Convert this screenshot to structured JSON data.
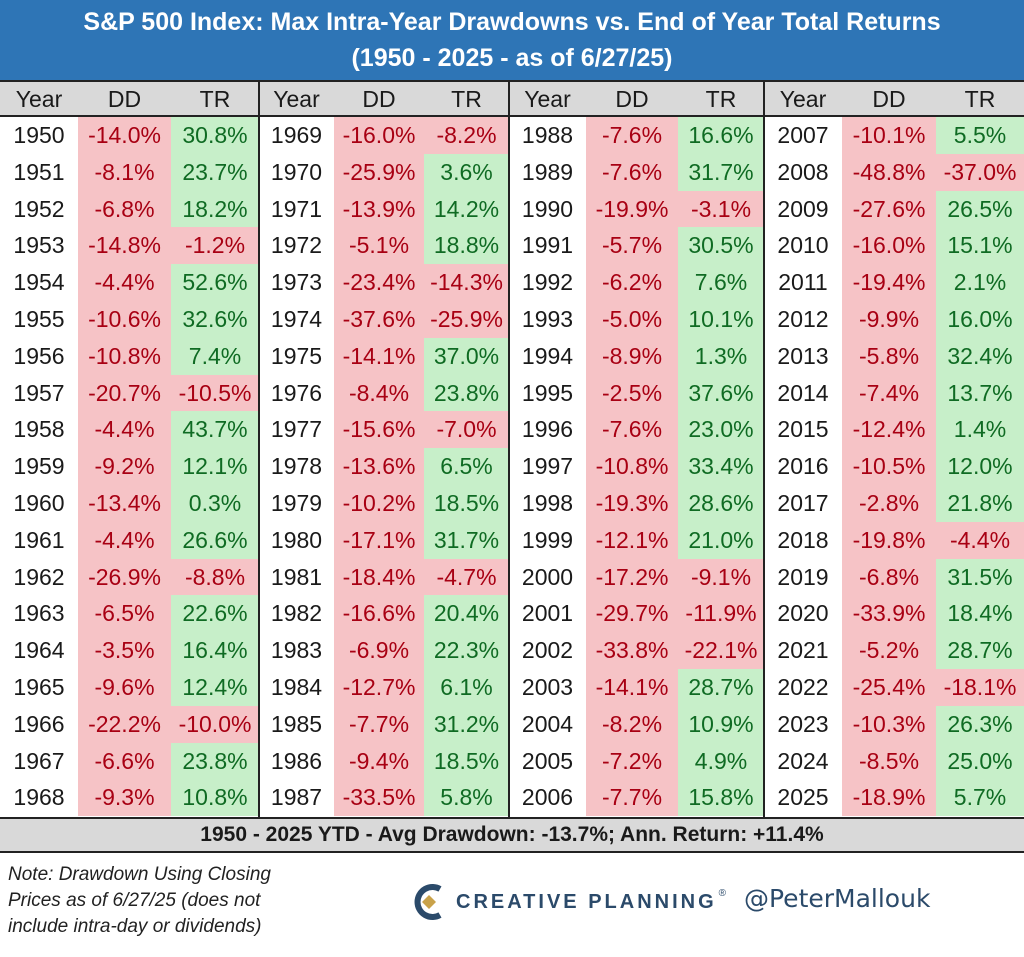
{
  "title": {
    "line1": "S&P 500 Index: Max Intra-Year Drawdowns vs. End of Year Total Returns",
    "line2": "(1950 - 2025 - as of 6/27/25)"
  },
  "headers": {
    "year": "Year",
    "dd": "DD",
    "tr": "TR"
  },
  "chart_data": {
    "type": "table",
    "columns": [
      "Year",
      "DD",
      "TR"
    ],
    "rows": [
      [
        "1950",
        "-14.0%",
        "30.8%"
      ],
      [
        "1951",
        "-8.1%",
        "23.7%"
      ],
      [
        "1952",
        "-6.8%",
        "18.2%"
      ],
      [
        "1953",
        "-14.8%",
        "-1.2%"
      ],
      [
        "1954",
        "-4.4%",
        "52.6%"
      ],
      [
        "1955",
        "-10.6%",
        "32.6%"
      ],
      [
        "1956",
        "-10.8%",
        "7.4%"
      ],
      [
        "1957",
        "-20.7%",
        "-10.5%"
      ],
      [
        "1958",
        "-4.4%",
        "43.7%"
      ],
      [
        "1959",
        "-9.2%",
        "12.1%"
      ],
      [
        "1960",
        "-13.4%",
        "0.3%"
      ],
      [
        "1961",
        "-4.4%",
        "26.6%"
      ],
      [
        "1962",
        "-26.9%",
        "-8.8%"
      ],
      [
        "1963",
        "-6.5%",
        "22.6%"
      ],
      [
        "1964",
        "-3.5%",
        "16.4%"
      ],
      [
        "1965",
        "-9.6%",
        "12.4%"
      ],
      [
        "1966",
        "-22.2%",
        "-10.0%"
      ],
      [
        "1967",
        "-6.6%",
        "23.8%"
      ],
      [
        "1968",
        "-9.3%",
        "10.8%"
      ],
      [
        "1969",
        "-16.0%",
        "-8.2%"
      ],
      [
        "1970",
        "-25.9%",
        "3.6%"
      ],
      [
        "1971",
        "-13.9%",
        "14.2%"
      ],
      [
        "1972",
        "-5.1%",
        "18.8%"
      ],
      [
        "1973",
        "-23.4%",
        "-14.3%"
      ],
      [
        "1974",
        "-37.6%",
        "-25.9%"
      ],
      [
        "1975",
        "-14.1%",
        "37.0%"
      ],
      [
        "1976",
        "-8.4%",
        "23.8%"
      ],
      [
        "1977",
        "-15.6%",
        "-7.0%"
      ],
      [
        "1978",
        "-13.6%",
        "6.5%"
      ],
      [
        "1979",
        "-10.2%",
        "18.5%"
      ],
      [
        "1980",
        "-17.1%",
        "31.7%"
      ],
      [
        "1981",
        "-18.4%",
        "-4.7%"
      ],
      [
        "1982",
        "-16.6%",
        "20.4%"
      ],
      [
        "1983",
        "-6.9%",
        "22.3%"
      ],
      [
        "1984",
        "-12.7%",
        "6.1%"
      ],
      [
        "1985",
        "-7.7%",
        "31.2%"
      ],
      [
        "1986",
        "-9.4%",
        "18.5%"
      ],
      [
        "1987",
        "-33.5%",
        "5.8%"
      ],
      [
        "1988",
        "-7.6%",
        "16.6%"
      ],
      [
        "1989",
        "-7.6%",
        "31.7%"
      ],
      [
        "1990",
        "-19.9%",
        "-3.1%"
      ],
      [
        "1991",
        "-5.7%",
        "30.5%"
      ],
      [
        "1992",
        "-6.2%",
        "7.6%"
      ],
      [
        "1993",
        "-5.0%",
        "10.1%"
      ],
      [
        "1994",
        "-8.9%",
        "1.3%"
      ],
      [
        "1995",
        "-2.5%",
        "37.6%"
      ],
      [
        "1996",
        "-7.6%",
        "23.0%"
      ],
      [
        "1997",
        "-10.8%",
        "33.4%"
      ],
      [
        "1998",
        "-19.3%",
        "28.6%"
      ],
      [
        "1999",
        "-12.1%",
        "21.0%"
      ],
      [
        "2000",
        "-17.2%",
        "-9.1%"
      ],
      [
        "2001",
        "-29.7%",
        "-11.9%"
      ],
      [
        "2002",
        "-33.8%",
        "-22.1%"
      ],
      [
        "2003",
        "-14.1%",
        "28.7%"
      ],
      [
        "2004",
        "-8.2%",
        "10.9%"
      ],
      [
        "2005",
        "-7.2%",
        "4.9%"
      ],
      [
        "2006",
        "-7.7%",
        "15.8%"
      ],
      [
        "2007",
        "-10.1%",
        "5.5%"
      ],
      [
        "2008",
        "-48.8%",
        "-37.0%"
      ],
      [
        "2009",
        "-27.6%",
        "26.5%"
      ],
      [
        "2010",
        "-16.0%",
        "15.1%"
      ],
      [
        "2011",
        "-19.4%",
        "2.1%"
      ],
      [
        "2012",
        "-9.9%",
        "16.0%"
      ],
      [
        "2013",
        "-5.8%",
        "32.4%"
      ],
      [
        "2014",
        "-7.4%",
        "13.7%"
      ],
      [
        "2015",
        "-12.4%",
        "1.4%"
      ],
      [
        "2016",
        "-10.5%",
        "12.0%"
      ],
      [
        "2017",
        "-2.8%",
        "21.8%"
      ],
      [
        "2018",
        "-19.8%",
        "-4.4%"
      ],
      [
        "2019",
        "-6.8%",
        "31.5%"
      ],
      [
        "2020",
        "-33.9%",
        "18.4%"
      ],
      [
        "2021",
        "-5.2%",
        "28.7%"
      ],
      [
        "2022",
        "-25.4%",
        "-18.1%"
      ],
      [
        "2023",
        "-10.3%",
        "26.3%"
      ],
      [
        "2024",
        "-8.5%",
        "25.0%"
      ],
      [
        "2025",
        "-18.9%",
        "5.7%"
      ]
    ]
  },
  "colors": {
    "title_bg": "#2e75b6",
    "negative_bg": "#f6c3c6",
    "negative_text": "#a80013",
    "positive_bg": "#c7efc9",
    "positive_text": "#0f6b23",
    "band_bg": "#d9d9d9"
  },
  "summary": "1950 - 2025 YTD - Avg Drawdown: -13.7%; Ann. Return: +11.4%",
  "note": {
    "line1": "Note: Drawdown Using Closing",
    "line2": "Prices as of 6/27/25 (does not",
    "line3": "include intra-day or dividends)"
  },
  "brand": {
    "icon": "creative-planning-logo-icon",
    "name": "CREATIVE PLANNING",
    "mark": "®",
    "handle": "@PeterMallouk"
  }
}
